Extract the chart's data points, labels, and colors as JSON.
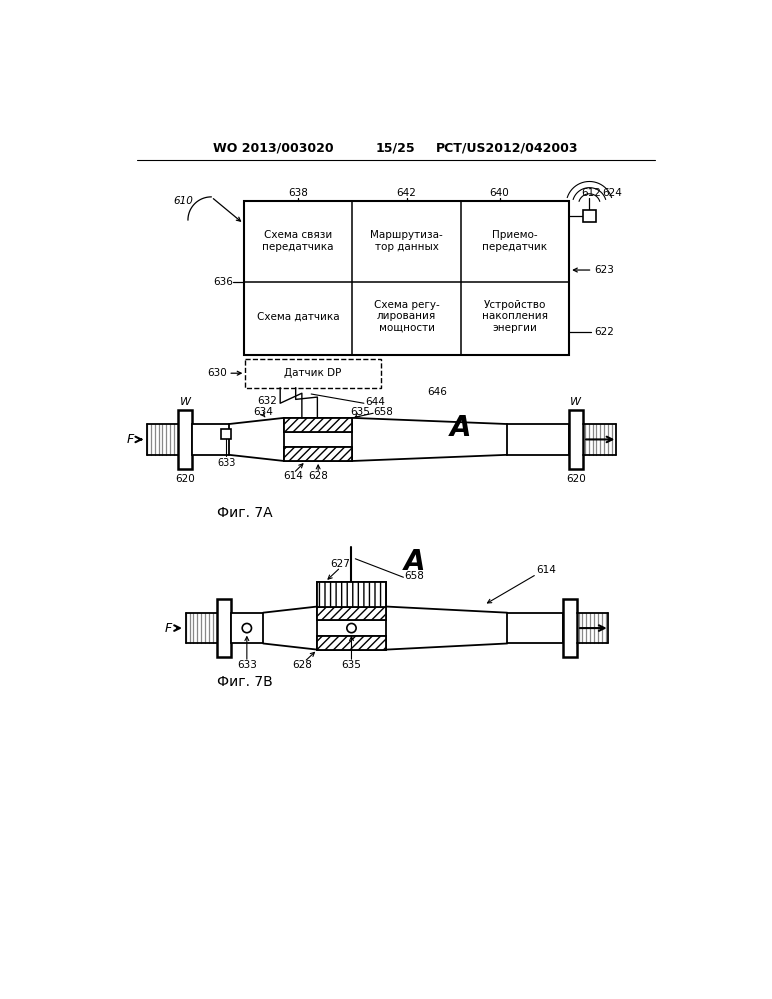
{
  "header_left": "WO 2013/003020",
  "header_center": "15/25",
  "header_right": "PCT/US2012/042003",
  "fig7a_label": "Фиг. 7A",
  "fig7b_label": "Фиг. 7В",
  "bg_color": "#ffffff"
}
